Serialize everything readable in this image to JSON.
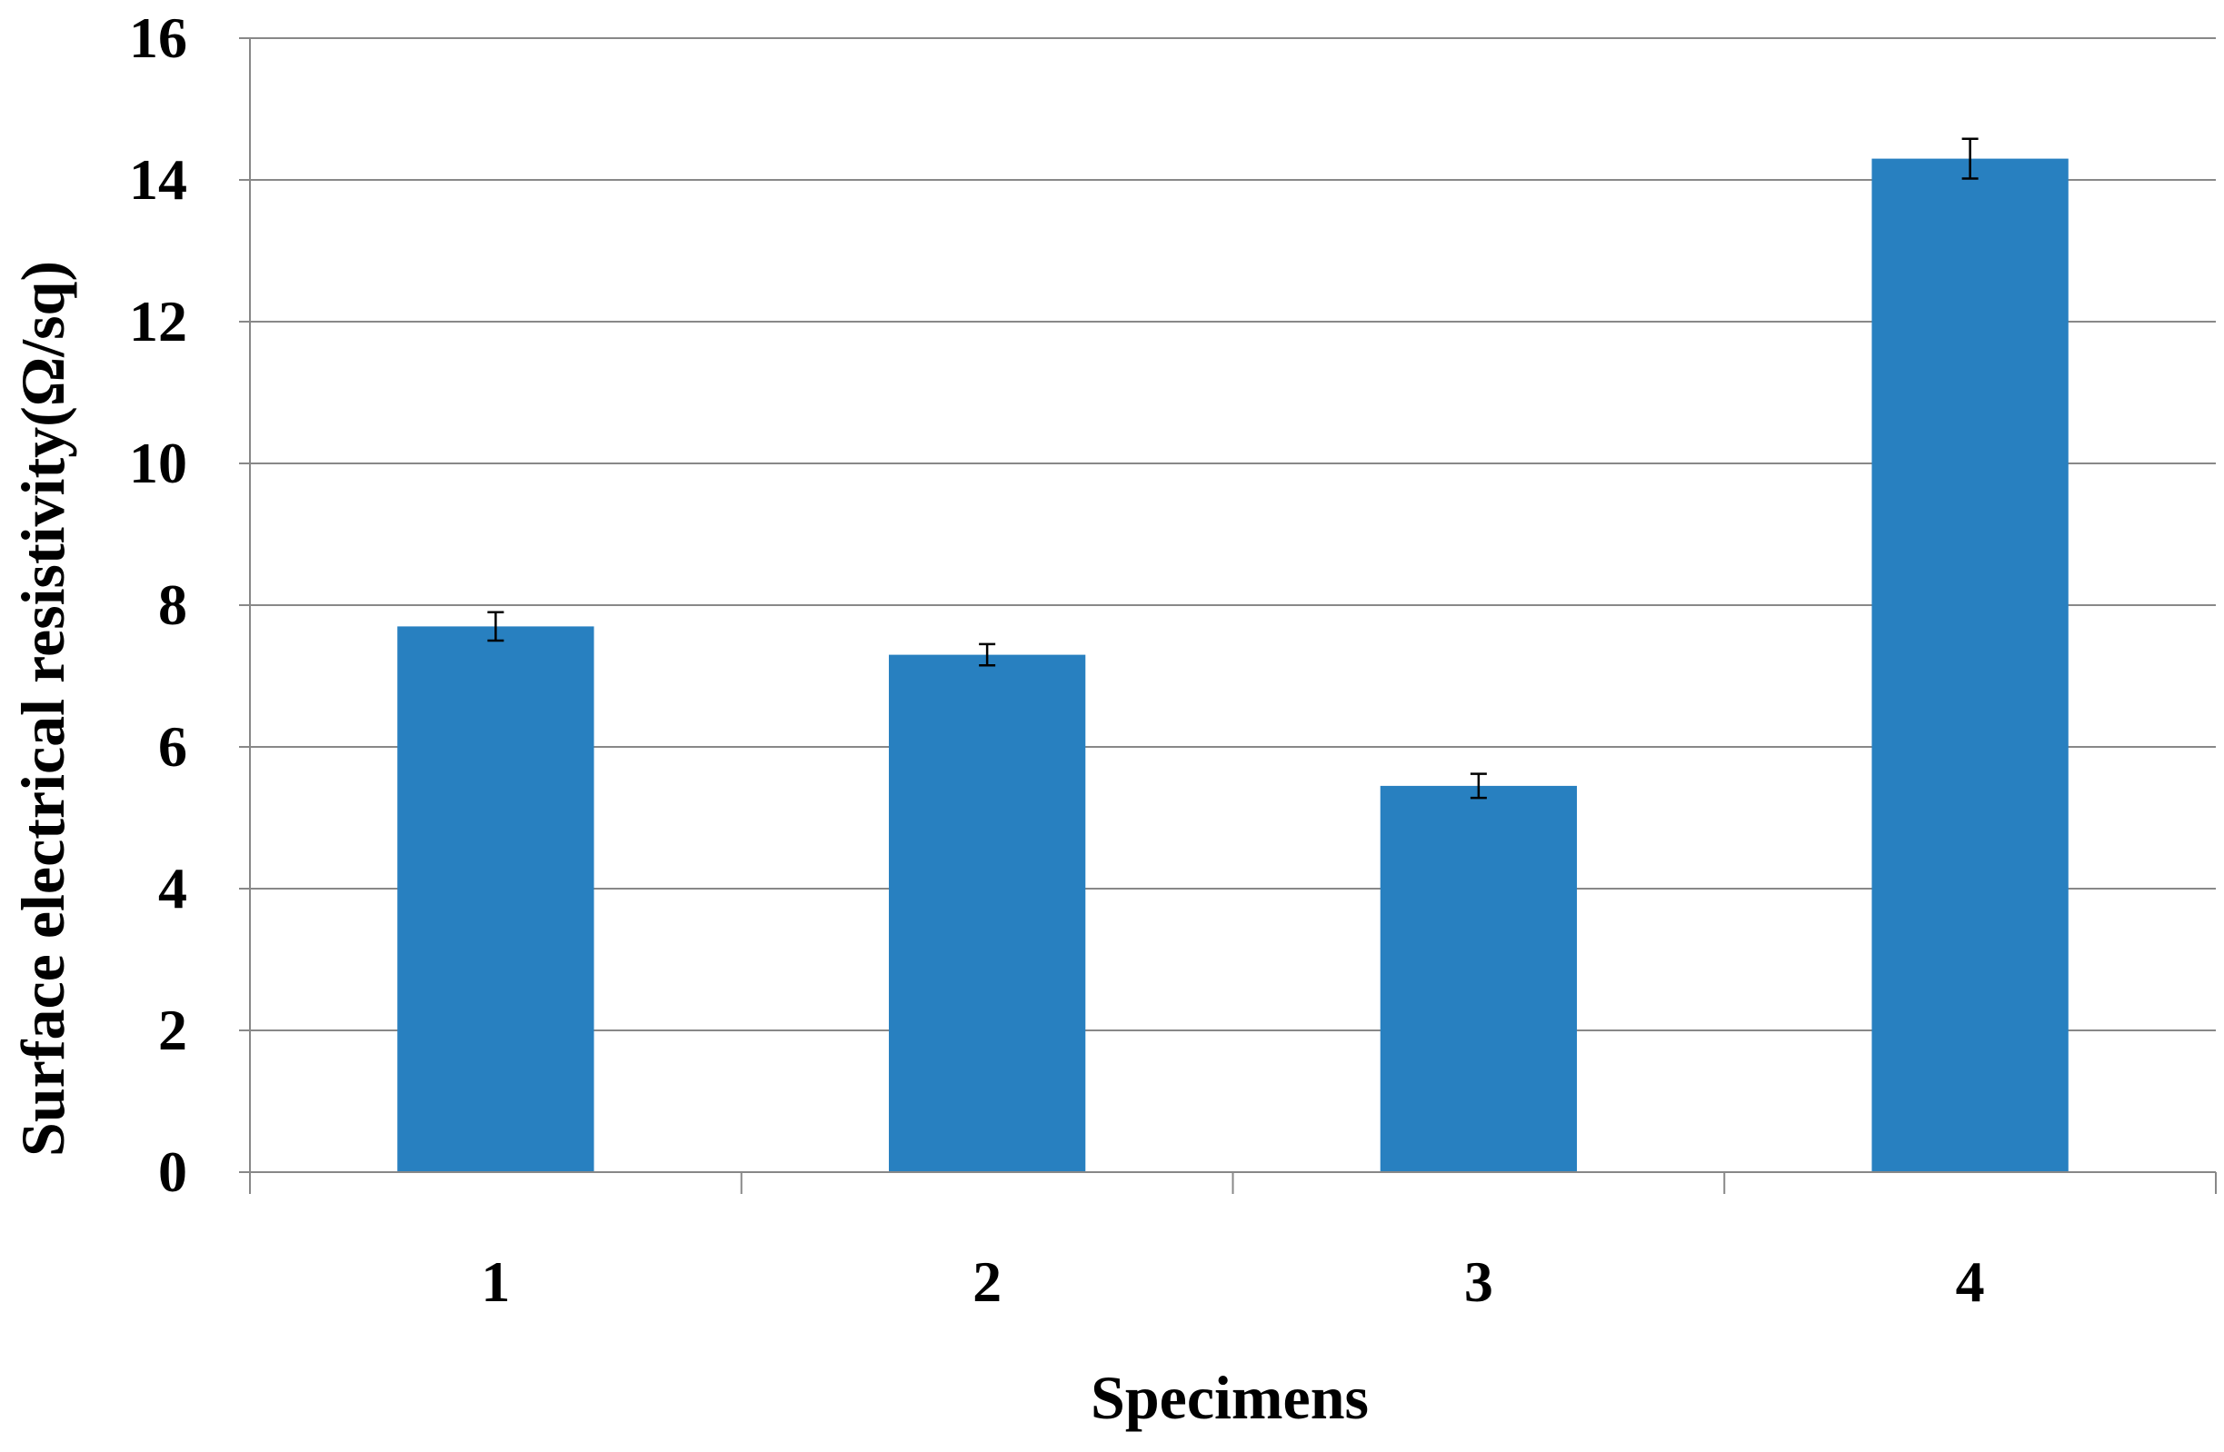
{
  "chart_data": {
    "type": "bar",
    "title": "",
    "xlabel": "Specimens",
    "ylabel": "Surface electrical resistivity(Ω/sq)",
    "categories": [
      "1",
      "2",
      "3",
      "4"
    ],
    "values": [
      7.7,
      7.3,
      5.45,
      14.3
    ],
    "error": [
      0.2,
      0.15,
      0.17,
      0.28
    ],
    "ylim": [
      0,
      16
    ],
    "yticks": [
      0,
      2,
      4,
      6,
      8,
      10,
      12,
      14,
      16
    ],
    "grid": true,
    "legend": "none",
    "bar_color": "#2880c0",
    "grid_color": "#888888"
  }
}
